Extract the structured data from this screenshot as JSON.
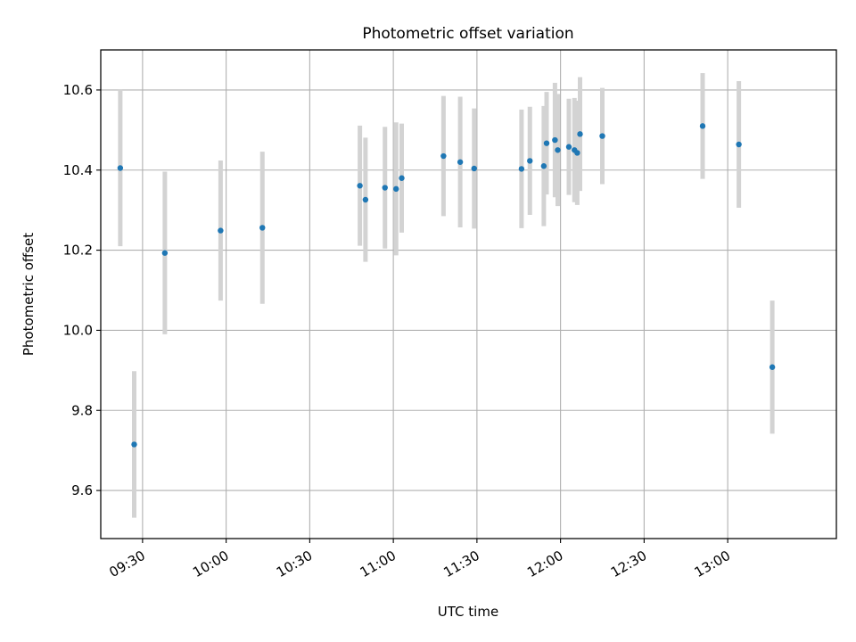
{
  "chart_data": {
    "type": "scatter",
    "title": "Photometric offset variation",
    "xlabel": "UTC time",
    "ylabel": "Photometric offset",
    "xlim": [
      "09:15",
      "13:39"
    ],
    "ylim": [
      9.48,
      10.7
    ],
    "x_ticks": [
      "09:30",
      "10:00",
      "10:30",
      "11:00",
      "11:30",
      "12:00",
      "12:30",
      "13:00"
    ],
    "y_ticks": [
      "9.6",
      "9.8",
      "10.0",
      "10.2",
      "10.4",
      "10.6"
    ],
    "grid": true,
    "colors": {
      "point": "#1f77b4",
      "errorbar": "#d3d3d3",
      "grid": "#b0b0b0"
    },
    "points": [
      {
        "x": "09:22",
        "y": 10.405,
        "err": 0.195
      },
      {
        "x": "09:27",
        "y": 9.715,
        "err": 0.183
      },
      {
        "x": "09:38",
        "y": 10.193,
        "err": 0.203
      },
      {
        "x": "09:58",
        "y": 10.249,
        "err": 0.175
      },
      {
        "x": "10:13",
        "y": 10.256,
        "err": 0.19
      },
      {
        "x": "10:48",
        "y": 10.361,
        "err": 0.15
      },
      {
        "x": "10:50",
        "y": 10.326,
        "err": 0.155
      },
      {
        "x": "10:57",
        "y": 10.356,
        "err": 0.152
      },
      {
        "x": "11:01",
        "y": 10.353,
        "err": 0.166
      },
      {
        "x": "11:03",
        "y": 10.38,
        "err": 0.136
      },
      {
        "x": "11:18",
        "y": 10.435,
        "err": 0.15
      },
      {
        "x": "11:24",
        "y": 10.42,
        "err": 0.163
      },
      {
        "x": "11:29",
        "y": 10.404,
        "err": 0.15
      },
      {
        "x": "11:46",
        "y": 10.403,
        "err": 0.148
      },
      {
        "x": "11:49",
        "y": 10.423,
        "err": 0.135
      },
      {
        "x": "11:54",
        "y": 10.41,
        "err": 0.15
      },
      {
        "x": "11:55",
        "y": 10.467,
        "err": 0.128
      },
      {
        "x": "11:58",
        "y": 10.475,
        "err": 0.143
      },
      {
        "x": "11:59",
        "y": 10.45,
        "err": 0.14
      },
      {
        "x": "12:03",
        "y": 10.458,
        "err": 0.12
      },
      {
        "x": "12:05",
        "y": 10.45,
        "err": 0.13
      },
      {
        "x": "12:06",
        "y": 10.443,
        "err": 0.13
      },
      {
        "x": "12:07",
        "y": 10.49,
        "err": 0.142
      },
      {
        "x": "12:15",
        "y": 10.485,
        "err": 0.12
      },
      {
        "x": "12:51",
        "y": 10.51,
        "err": 0.132
      },
      {
        "x": "13:04",
        "y": 10.464,
        "err": 0.158
      },
      {
        "x": "13:16",
        "y": 9.908,
        "err": 0.166
      }
    ]
  }
}
